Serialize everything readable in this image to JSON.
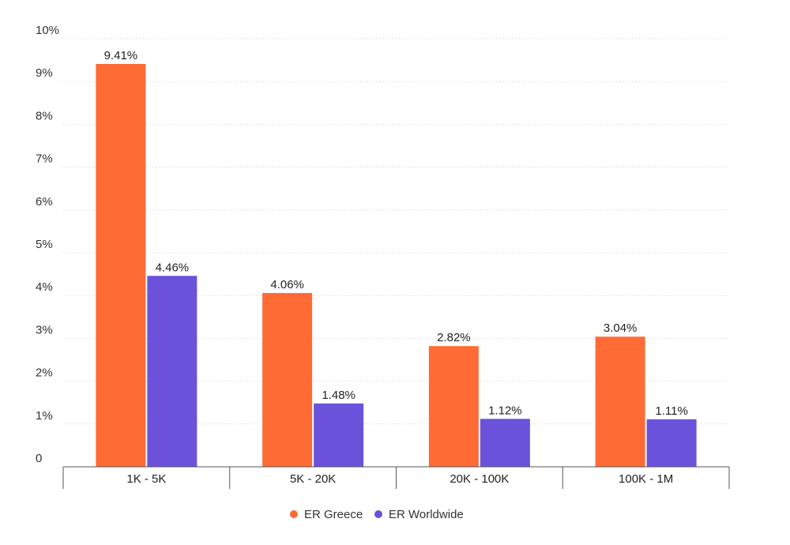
{
  "chart_data": {
    "type": "bar",
    "categories": [
      "1K - 5K",
      "5K - 20K",
      "20K - 100K",
      "100K - 1M"
    ],
    "series": [
      {
        "name": "ER Greece",
        "values": [
          9.41,
          4.06,
          2.82,
          3.04
        ],
        "labels": [
          "9.41%",
          "4.06%",
          "2.82%",
          "3.04%"
        ],
        "color": "#FF6B35"
      },
      {
        "name": "ER Worldwide",
        "values": [
          4.46,
          1.48,
          1.12,
          1.11
        ],
        "labels": [
          "4.46%",
          "1.48%",
          "1.12%",
          "1.11%"
        ],
        "color": "#6C52DB"
      }
    ],
    "yticks": [
      {
        "value": 0,
        "label": "0"
      },
      {
        "value": 1,
        "label": "1%"
      },
      {
        "value": 2,
        "label": "2%"
      },
      {
        "value": 3,
        "label": "3%"
      },
      {
        "value": 4,
        "label": "4%"
      },
      {
        "value": 5,
        "label": "5%"
      },
      {
        "value": 6,
        "label": "6%"
      },
      {
        "value": 7,
        "label": "7%"
      },
      {
        "value": 8,
        "label": "8%"
      },
      {
        "value": 9,
        "label": "9%"
      },
      {
        "value": 10,
        "label": "10%"
      }
    ],
    "ylim": [
      0,
      10
    ],
    "grid": true,
    "legend_position": "bottom",
    "title": "",
    "xlabel": "",
    "ylabel": ""
  }
}
